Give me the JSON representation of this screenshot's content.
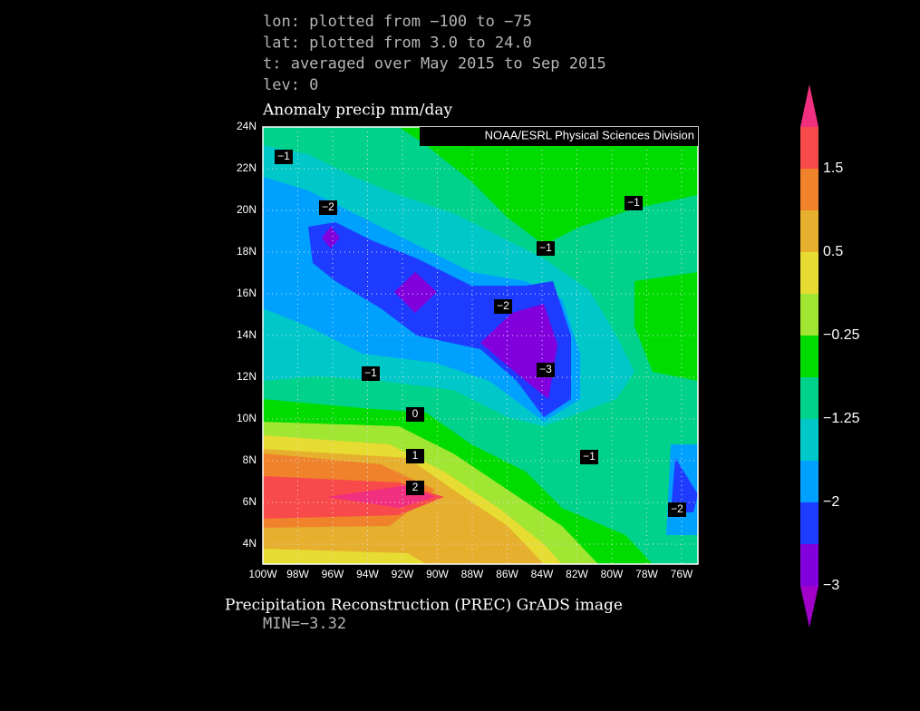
{
  "header": {
    "lines": [
      "lon: plotted from −100 to −75",
      "lat: plotted from 3.0 to 24.0",
      "t: averaged over May 2015 to Sep 2015",
      "lev: 0"
    ]
  },
  "map": {
    "title": "Anomaly precip mm/day",
    "credit": "NOAA/ESRL Physical Sciences Division",
    "lat_labels": [
      "24N",
      "22N",
      "20N",
      "18N",
      "16N",
      "14N",
      "12N",
      "10N",
      "8N",
      "6N",
      "4N"
    ],
    "lon_labels": [
      "100W",
      "98W",
      "96W",
      "94W",
      "92W",
      "90W",
      "88W",
      "86W",
      "84W",
      "82W",
      "80W",
      "78W",
      "76W"
    ],
    "contour_labels": [
      "−1",
      "−2",
      "−1",
      "−1",
      "−2",
      "−1",
      "−3",
      "0",
      "1",
      "2",
      "−1",
      "−2"
    ]
  },
  "colorbar": {
    "labels": [
      "1.5",
      "0.5",
      "−0.25",
      "−1.25",
      "−2",
      "−3"
    ]
  },
  "footer": {
    "title": "Precipitation Reconstruction (PREC) GrADS image",
    "min": "MIN=−3.32"
  }
}
